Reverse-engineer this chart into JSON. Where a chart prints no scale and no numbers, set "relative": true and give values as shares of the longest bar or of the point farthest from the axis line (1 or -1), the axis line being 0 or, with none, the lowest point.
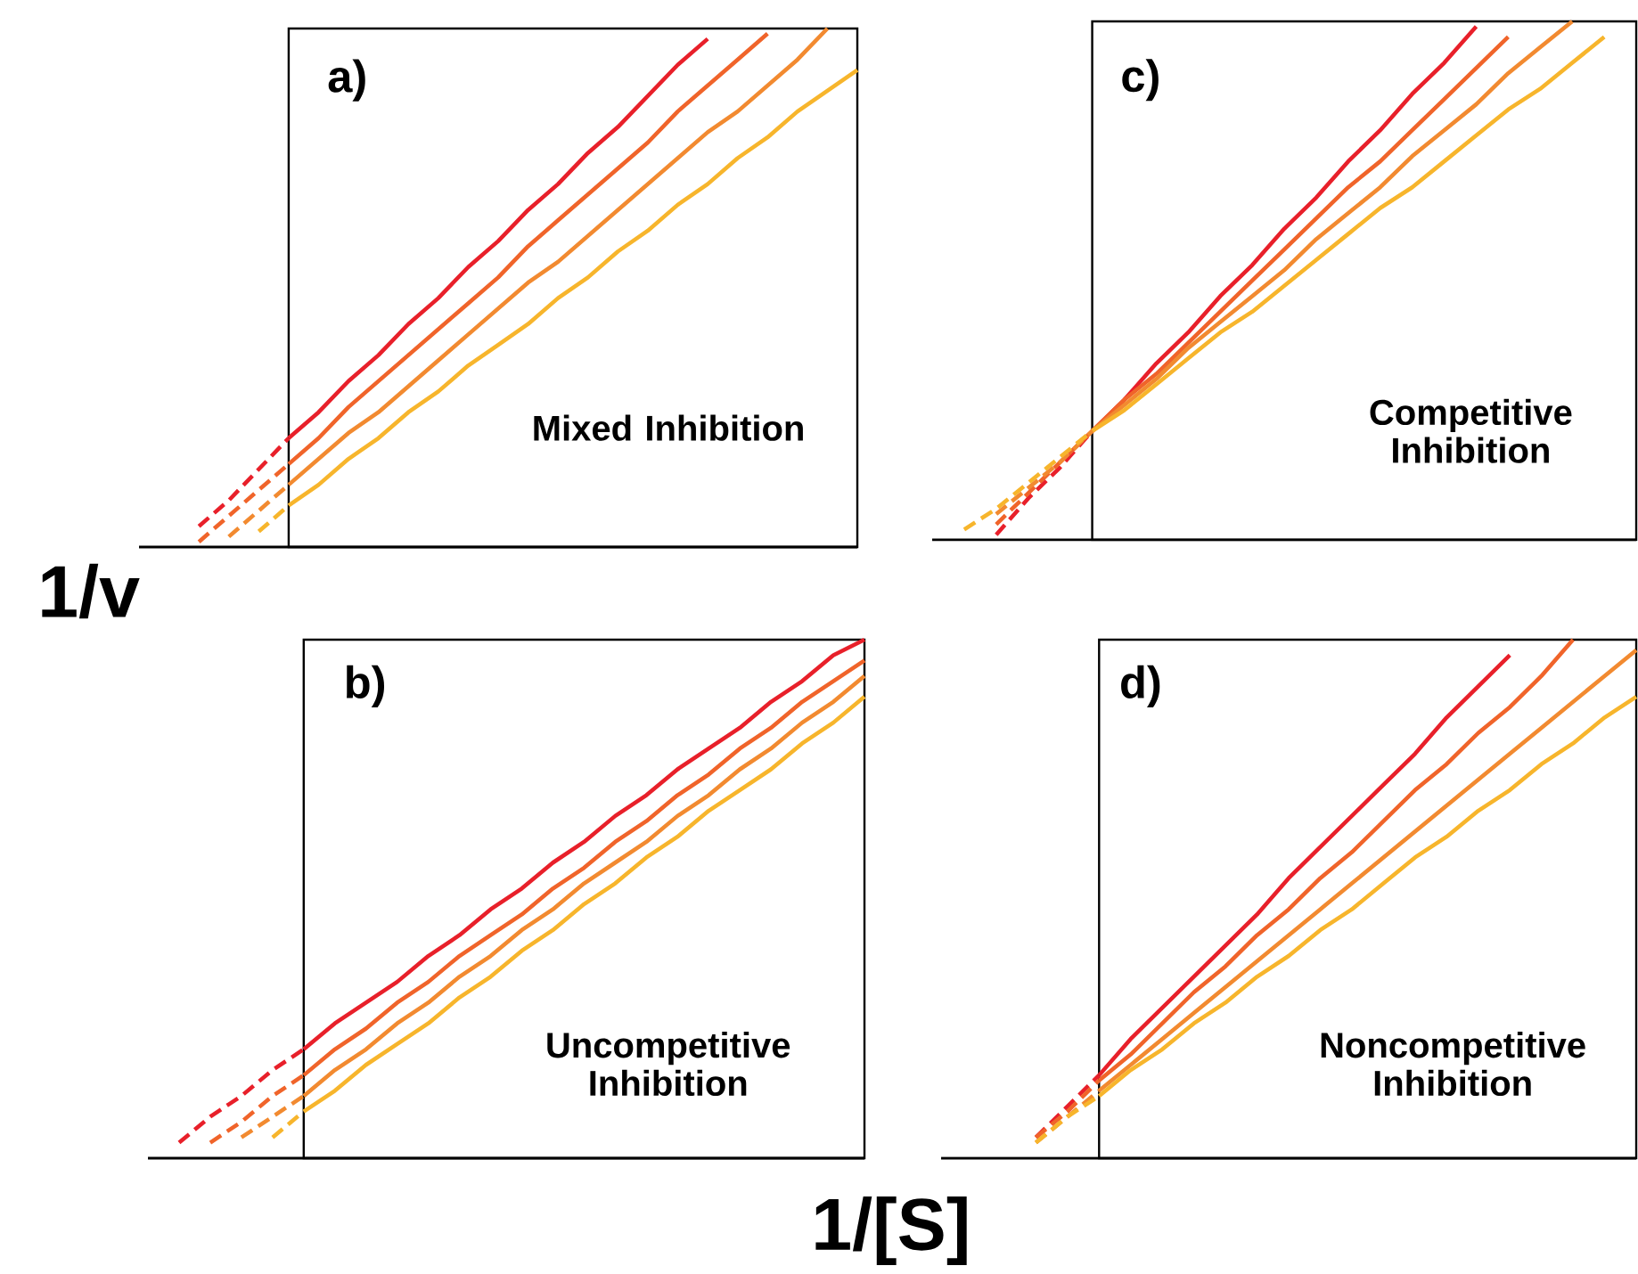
{
  "chart_data": [
    {
      "type": "line",
      "relative": true,
      "title": "a)",
      "ylabel": "1/v",
      "annotations": [
        "Mixed Inhibition"
      ],
      "categories": [
        null,
        null,
        null,
        null,
        null,
        null,
        null,
        null,
        null,
        null,
        null,
        null,
        null,
        null,
        null,
        null,
        null,
        null,
        null,
        null,
        null,
        null,
        null,
        null,
        null
      ],
      "series": [
        {
          "color": "#e8202a",
          "line_style": "solid",
          "values": [
            null,
            null,
            null,
            null,
            null,
            0.21,
            0.26,
            0.32,
            0.37,
            0.43,
            0.48,
            0.54,
            0.59,
            0.65,
            0.7,
            0.76,
            0.81,
            0.87,
            0.93,
            0.98,
            null,
            null,
            null,
            null,
            null
          ]
        },
        {
          "color": "#f0642a",
          "line_style": "solid",
          "values": [
            null,
            null,
            null,
            null,
            null,
            0.16,
            0.21,
            0.27,
            0.32,
            0.37,
            0.42,
            0.47,
            0.52,
            0.58,
            0.63,
            0.68,
            0.73,
            0.78,
            0.84,
            0.89,
            0.94,
            0.99,
            null,
            null,
            null
          ]
        },
        {
          "color": "#f28a30",
          "line_style": "solid",
          "values": [
            null,
            null,
            null,
            null,
            null,
            0.12,
            0.17,
            0.22,
            0.26,
            0.31,
            0.36,
            0.41,
            0.46,
            0.51,
            0.55,
            0.6,
            0.65,
            0.7,
            0.75,
            0.8,
            0.84,
            0.89,
            0.94,
            1.0,
            null
          ]
        },
        {
          "color": "#f7b52c",
          "line_style": "solid",
          "values": [
            null,
            null,
            null,
            null,
            null,
            0.08,
            0.12,
            0.17,
            0.21,
            0.26,
            0.3,
            0.35,
            0.39,
            0.43,
            0.48,
            0.52,
            0.57,
            0.61,
            0.66,
            0.7,
            0.75,
            0.79,
            0.84,
            0.88,
            0.92
          ]
        },
        {
          "color": "#e8202a",
          "line_style": "dashed",
          "values": [
            null,
            null,
            0.04,
            0.09,
            0.15,
            0.21,
            null,
            null,
            null,
            null,
            null,
            null,
            null,
            null,
            null,
            null,
            null,
            null,
            null,
            null,
            null,
            null,
            null,
            null,
            null
          ]
        },
        {
          "color": "#f0642a",
          "line_style": "dashed",
          "values": [
            null,
            null,
            0.01,
            0.06,
            0.11,
            0.16,
            null,
            null,
            null,
            null,
            null,
            null,
            null,
            null,
            null,
            null,
            null,
            null,
            null,
            null,
            null,
            null,
            null,
            null,
            null
          ]
        },
        {
          "color": "#f28a30",
          "line_style": "dashed",
          "values": [
            null,
            null,
            null,
            0.02,
            0.07,
            0.12,
            null,
            null,
            null,
            null,
            null,
            null,
            null,
            null,
            null,
            null,
            null,
            null,
            null,
            null,
            null,
            null,
            null,
            null,
            null
          ]
        },
        {
          "color": "#f7b52c",
          "line_style": "dashed",
          "values": [
            null,
            null,
            null,
            null,
            0.03,
            0.08,
            null,
            null,
            null,
            null,
            null,
            null,
            null,
            null,
            null,
            null,
            null,
            null,
            null,
            null,
            null,
            null,
            null,
            null,
            null
          ]
        }
      ]
    },
    {
      "type": "line",
      "relative": true,
      "title": "c)",
      "annotations": [
        "Competitive Inhibition"
      ],
      "categories": [
        null,
        null,
        null,
        null,
        null,
        null,
        null,
        null,
        null,
        null,
        null,
        null,
        null,
        null,
        null,
        null,
        null,
        null,
        null,
        null,
        null,
        null,
        null
      ],
      "series": [
        {
          "color": "#e8202a",
          "line_style": "solid",
          "values": [
            null,
            null,
            null,
            null,
            null,
            0.21,
            0.27,
            0.34,
            0.4,
            0.47,
            0.53,
            0.6,
            0.66,
            0.73,
            0.79,
            0.86,
            0.92,
            0.99,
            null,
            null,
            null,
            null,
            null
          ]
        },
        {
          "color": "#f0642a",
          "line_style": "solid",
          "values": [
            null,
            null,
            null,
            null,
            null,
            0.21,
            0.27,
            0.32,
            0.38,
            0.44,
            0.5,
            0.56,
            0.62,
            0.68,
            0.73,
            0.79,
            0.85,
            0.91,
            0.97,
            null,
            null,
            null,
            null
          ]
        },
        {
          "color": "#f28a30",
          "line_style": "solid",
          "values": [
            null,
            null,
            null,
            null,
            null,
            0.21,
            0.26,
            0.31,
            0.37,
            0.42,
            0.47,
            0.52,
            0.58,
            0.63,
            0.68,
            0.74,
            0.79,
            0.84,
            0.9,
            0.95,
            1.0,
            null,
            null
          ]
        },
        {
          "color": "#f7b52c",
          "line_style": "solid",
          "values": [
            null,
            null,
            null,
            null,
            null,
            0.21,
            0.25,
            0.3,
            0.35,
            0.4,
            0.44,
            0.49,
            0.54,
            0.59,
            0.64,
            0.68,
            0.73,
            0.78,
            0.83,
            0.87,
            0.92,
            0.97,
            null
          ]
        },
        {
          "color": "#e8202a",
          "line_style": "dashed",
          "values": [
            null,
            null,
            0.01,
            0.08,
            0.14,
            0.21,
            null,
            null,
            null,
            null,
            null,
            null,
            null,
            null,
            null,
            null,
            null,
            null,
            null,
            null,
            null,
            null,
            null
          ]
        },
        {
          "color": "#f0642a",
          "line_style": "dashed",
          "values": [
            null,
            null,
            0.03,
            0.09,
            0.15,
            0.21,
            null,
            null,
            null,
            null,
            null,
            null,
            null,
            null,
            null,
            null,
            null,
            null,
            null,
            null,
            null,
            null,
            null
          ]
        },
        {
          "color": "#f28a30",
          "line_style": "dashed",
          "values": [
            null,
            null,
            0.05,
            0.1,
            0.15,
            0.21,
            null,
            null,
            null,
            null,
            null,
            null,
            null,
            null,
            null,
            null,
            null,
            null,
            null,
            null,
            null,
            null,
            null
          ]
        },
        {
          "color": "#f7b52c",
          "line_style": "dashed",
          "values": [
            null,
            0.02,
            0.06,
            0.11,
            0.16,
            0.21,
            null,
            null,
            null,
            null,
            null,
            null,
            null,
            null,
            null,
            null,
            null,
            null,
            null,
            null,
            null,
            null,
            null
          ]
        }
      ]
    },
    {
      "type": "line",
      "relative": true,
      "title": "b)",
      "xlabel": "1/[S]",
      "annotations": [
        "Uncompetitive Inhibition"
      ],
      "categories": [
        null,
        null,
        null,
        null,
        null,
        null,
        null,
        null,
        null,
        null,
        null,
        null,
        null,
        null,
        null,
        null,
        null,
        null,
        null,
        null,
        null,
        null,
        null,
        null
      ],
      "series": [
        {
          "color": "#e8202a",
          "line_style": "solid",
          "values": [
            null,
            null,
            null,
            null,
            null,
            0.21,
            0.26,
            0.3,
            0.34,
            0.39,
            0.43,
            0.48,
            0.52,
            0.57,
            0.61,
            0.66,
            0.7,
            0.75,
            0.79,
            0.83,
            0.88,
            0.92,
            0.97,
            1.0
          ]
        },
        {
          "color": "#f0642a",
          "line_style": "solid",
          "values": [
            null,
            null,
            null,
            null,
            null,
            0.16,
            0.21,
            0.25,
            0.3,
            0.34,
            0.39,
            0.43,
            0.47,
            0.52,
            0.56,
            0.61,
            0.65,
            0.7,
            0.74,
            0.79,
            0.83,
            0.88,
            0.92,
            0.96
          ]
        },
        {
          "color": "#f28a30",
          "line_style": "solid",
          "values": [
            null,
            null,
            null,
            null,
            null,
            0.12,
            0.17,
            0.21,
            0.26,
            0.3,
            0.35,
            0.39,
            0.44,
            0.48,
            0.53,
            0.57,
            0.61,
            0.66,
            0.7,
            0.75,
            0.79,
            0.84,
            0.88,
            0.93
          ]
        },
        {
          "color": "#f7b52c",
          "line_style": "solid",
          "values": [
            null,
            null,
            null,
            null,
            null,
            0.09,
            0.13,
            0.18,
            0.22,
            0.26,
            0.31,
            0.35,
            0.4,
            0.44,
            0.49,
            0.53,
            0.58,
            0.62,
            0.67,
            0.71,
            0.75,
            0.8,
            0.84,
            0.89
          ]
        },
        {
          "color": "#e8202a",
          "line_style": "dashed",
          "values": [
            null,
            0.03,
            0.08,
            0.12,
            0.17,
            0.21,
            null,
            null,
            null,
            null,
            null,
            null,
            null,
            null,
            null,
            null,
            null,
            null,
            null,
            null,
            null,
            null,
            null,
            null
          ]
        },
        {
          "color": "#f0642a",
          "line_style": "dashed",
          "values": [
            null,
            null,
            0.03,
            0.07,
            0.12,
            0.16,
            null,
            null,
            null,
            null,
            null,
            null,
            null,
            null,
            null,
            null,
            null,
            null,
            null,
            null,
            null,
            null,
            null,
            null
          ]
        },
        {
          "color": "#f28a30",
          "line_style": "dashed",
          "values": [
            null,
            null,
            null,
            0.04,
            0.08,
            0.12,
            null,
            null,
            null,
            null,
            null,
            null,
            null,
            null,
            null,
            null,
            null,
            null,
            null,
            null,
            null,
            null,
            null,
            null
          ]
        },
        {
          "color": "#f7b52c",
          "line_style": "dashed",
          "values": [
            null,
            null,
            null,
            null,
            0.04,
            0.09,
            null,
            null,
            null,
            null,
            null,
            null,
            null,
            null,
            null,
            null,
            null,
            null,
            null,
            null,
            null,
            null,
            null,
            null
          ]
        }
      ]
    },
    {
      "type": "line",
      "relative": true,
      "title": "d)",
      "annotations": [
        "Noncompetitive Inhibition"
      ],
      "categories": [
        null,
        null,
        null,
        null,
        null,
        null,
        null,
        null,
        null,
        null,
        null,
        null,
        null,
        null,
        null,
        null,
        null,
        null,
        null,
        null,
        null,
        null,
        null
      ],
      "series": [
        {
          "color": "#e8202a",
          "line_style": "solid",
          "values": [
            null,
            null,
            null,
            null,
            null,
            0.16,
            0.23,
            0.29,
            0.35,
            0.41,
            0.47,
            0.54,
            0.6,
            0.66,
            0.72,
            0.78,
            0.85,
            0.91,
            0.97,
            null,
            null,
            null,
            null
          ]
        },
        {
          "color": "#f0642a",
          "line_style": "solid",
          "values": [
            null,
            null,
            null,
            null,
            null,
            0.15,
            0.2,
            0.26,
            0.32,
            0.37,
            0.43,
            0.48,
            0.54,
            0.59,
            0.65,
            0.71,
            0.76,
            0.82,
            0.87,
            0.93,
            1.0,
            null,
            null
          ]
        },
        {
          "color": "#f28a30",
          "line_style": "solid",
          "values": [
            null,
            null,
            null,
            null,
            null,
            0.13,
            0.18,
            0.23,
            0.28,
            0.33,
            0.38,
            0.43,
            0.48,
            0.53,
            0.58,
            0.63,
            0.68,
            0.73,
            0.78,
            0.83,
            0.88,
            0.93,
            0.98
          ]
        },
        {
          "color": "#f7b52c",
          "line_style": "solid",
          "values": [
            null,
            null,
            null,
            null,
            null,
            0.12,
            0.17,
            0.21,
            0.26,
            0.3,
            0.35,
            0.39,
            0.44,
            0.48,
            0.53,
            0.58,
            0.62,
            0.67,
            0.71,
            0.76,
            0.8,
            0.85,
            0.89
          ]
        },
        {
          "color": "#e8202a",
          "line_style": "dashed",
          "values": [
            null,
            null,
            null,
            0.04,
            0.1,
            0.16,
            null,
            null,
            null,
            null,
            null,
            null,
            null,
            null,
            null,
            null,
            null,
            null,
            null,
            null,
            null,
            null,
            null
          ]
        },
        {
          "color": "#f0642a",
          "line_style": "dashed",
          "values": [
            null,
            null,
            null,
            0.04,
            0.09,
            0.15,
            null,
            null,
            null,
            null,
            null,
            null,
            null,
            null,
            null,
            null,
            null,
            null,
            null,
            null,
            null,
            null,
            null
          ]
        },
        {
          "color": "#f28a30",
          "line_style": "dashed",
          "values": [
            null,
            null,
            null,
            0.03,
            0.08,
            0.13,
            null,
            null,
            null,
            null,
            null,
            null,
            null,
            null,
            null,
            null,
            null,
            null,
            null,
            null,
            null,
            null,
            null
          ]
        },
        {
          "color": "#f7b52c",
          "line_style": "dashed",
          "values": [
            null,
            null,
            null,
            0.03,
            0.08,
            0.12,
            null,
            null,
            null,
            null,
            null,
            null,
            null,
            null,
            null,
            null,
            null,
            null,
            null,
            null,
            null,
            null,
            null
          ]
        }
      ]
    }
  ]
}
